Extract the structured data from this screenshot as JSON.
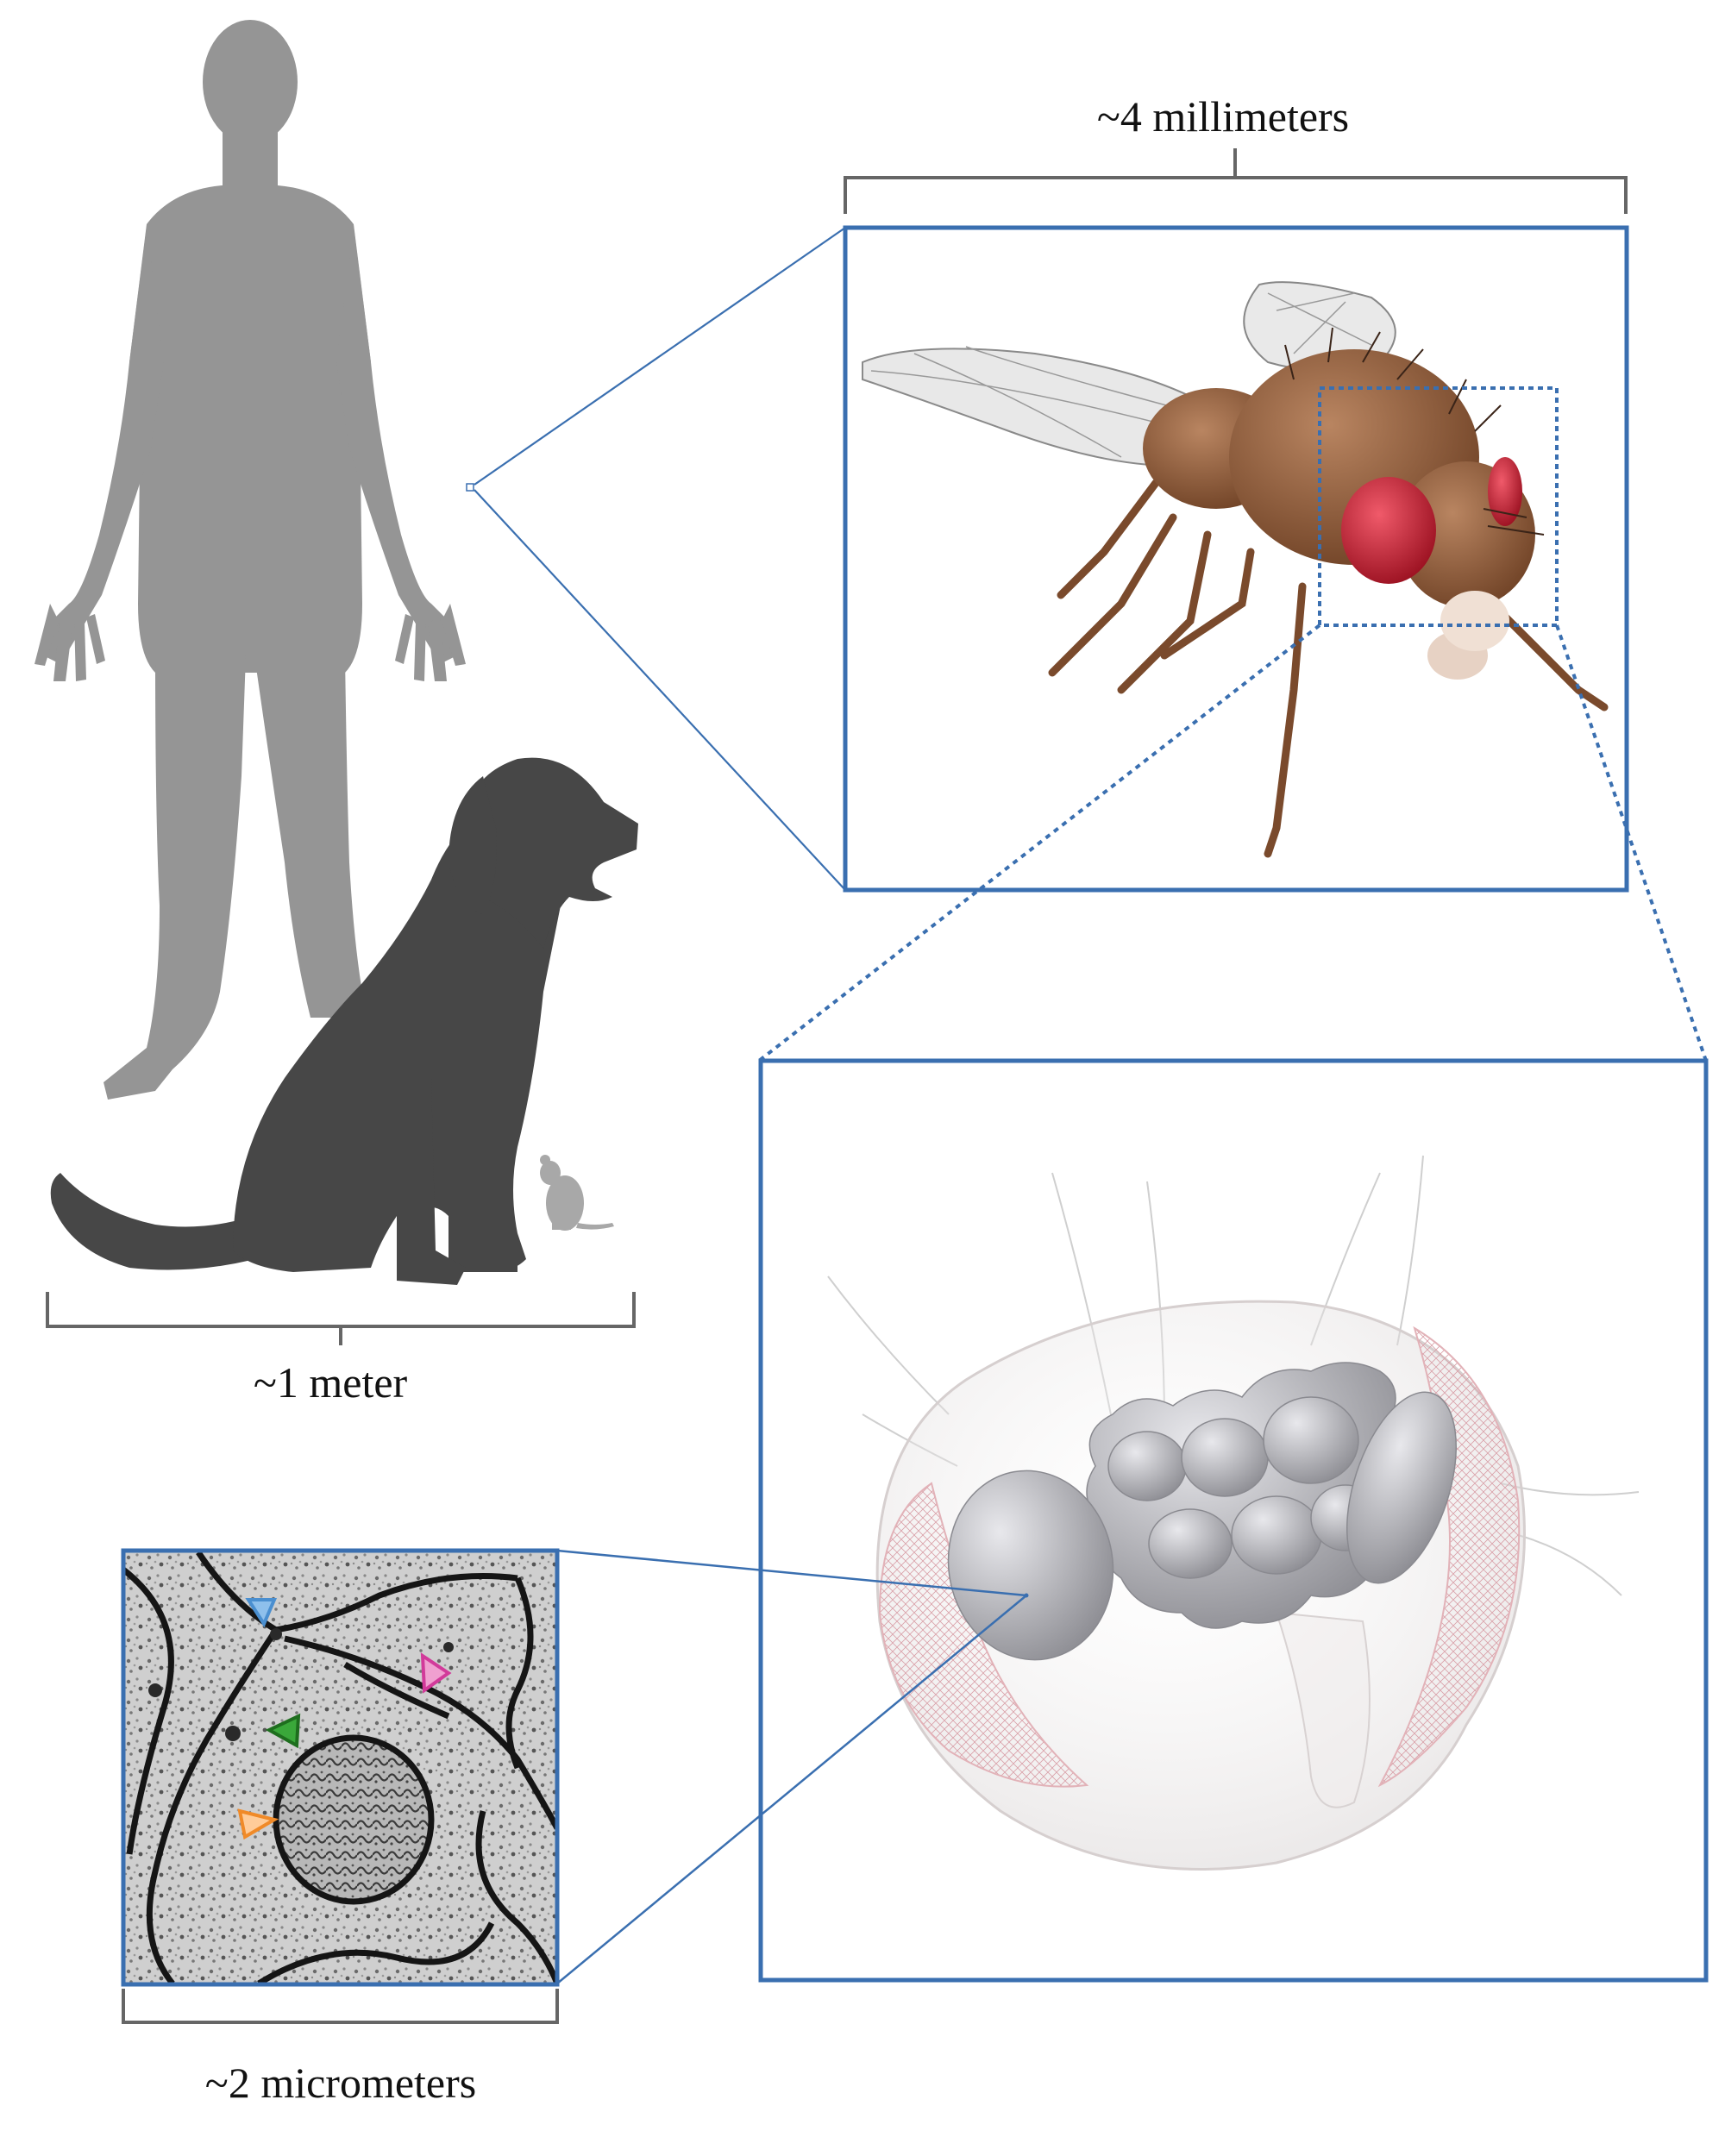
{
  "scale_labels": {
    "human_scale": "~1 meter",
    "fly_scale": "~4 millimeters",
    "em_scale": "~2 micrometers"
  },
  "colors": {
    "panel_border": "#3a6fb0",
    "bracket": "#666666",
    "human_silhouette": "#959595",
    "dog_silhouette": "#474747",
    "mouse_silhouette": "#a8a8a8",
    "fly_body": "#8b5a3c",
    "fly_eye": "#d0283a",
    "brain": "#b4b4b8",
    "marker_blue": "#4a8fd0",
    "marker_magenta": "#d23a9a",
    "marker_green": "#2f8a2f",
    "marker_orange": "#f08a28"
  },
  "icons": [
    "human-silhouette-icon",
    "dog-silhouette-icon",
    "mouse-silhouette-icon",
    "fruit-fly-icon",
    "fly-head-brain-icon",
    "electron-micrograph-icon"
  ]
}
